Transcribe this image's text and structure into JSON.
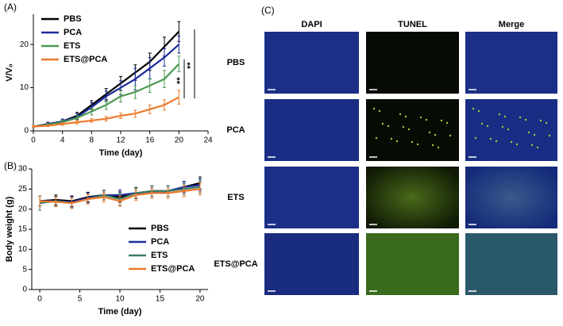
{
  "chart_data": [
    {
      "type": "line",
      "panel_label": "(A)",
      "x_label": "Time (day)",
      "y_label": "V/V₀",
      "x": [
        0,
        2,
        4,
        6,
        8,
        10,
        12,
        14,
        16,
        18,
        20
      ],
      "xlim": [
        0,
        24
      ],
      "xticks": [
        0,
        4,
        8,
        12,
        16,
        20,
        24
      ],
      "ylim": [
        0,
        27
      ],
      "yticks": [
        0,
        10,
        20
      ],
      "legend": "upper left",
      "annotations": [
        "**",
        "**"
      ],
      "series": [
        {
          "name": "PBS",
          "color": "#000000",
          "values": [
            1,
            1.6,
            2.2,
            3.5,
            6,
            8.5,
            11,
            13.5,
            16,
            19.5,
            23
          ],
          "errors": [
            0.2,
            0.4,
            0.5,
            0.8,
            1,
            1.3,
            1.6,
            1.8,
            2,
            2.2,
            2.3
          ]
        },
        {
          "name": "PCA",
          "color": "#1c2b9c",
          "values": [
            1,
            1.5,
            2.2,
            3.2,
            5.5,
            8,
            10,
            12,
            14.5,
            17,
            20
          ],
          "errors": [
            0.2,
            0.4,
            0.5,
            0.8,
            1,
            1.2,
            1.6,
            2.5,
            2.5,
            2,
            2
          ]
        },
        {
          "name": "ETS",
          "color": "#4c9a52",
          "values": [
            1,
            1.4,
            2,
            3,
            4.5,
            6,
            8,
            9,
            10.5,
            12,
            15.5
          ],
          "errors": [
            0.2,
            0.3,
            0.5,
            0.6,
            0.8,
            1,
            1.3,
            1.5,
            1.6,
            2,
            1.8
          ]
        },
        {
          "name": "ETS@PCA",
          "color": "#ec7a2c",
          "values": [
            1,
            1.2,
            1.6,
            2,
            2.4,
            2.8,
            3.5,
            4,
            5,
            6,
            7.8
          ],
          "errors": [
            0.2,
            0.2,
            0.3,
            0.4,
            0.4,
            0.5,
            0.6,
            0.8,
            1,
            1.2,
            1.6
          ]
        }
      ]
    },
    {
      "type": "line",
      "panel_label": "(B)",
      "x_label": "Time (day)",
      "y_label": "Body weight (g)",
      "x": [
        0,
        2,
        4,
        6,
        8,
        10,
        12,
        14,
        16,
        18,
        20
      ],
      "xlim": [
        -1,
        21
      ],
      "xticks": [
        0,
        5,
        10,
        15,
        20
      ],
      "ylim": [
        0,
        30
      ],
      "yticks": [
        0,
        5,
        10,
        15,
        20,
        25,
        30
      ],
      "legend": "lower right",
      "series": [
        {
          "name": "PBS",
          "color": "#000000",
          "values": [
            22,
            22.3,
            22,
            23,
            23.5,
            23,
            24,
            24.5,
            24.5,
            25.5,
            26.5
          ],
          "errors": [
            1.2,
            1.2,
            1.3,
            1.2,
            1.2,
            1.3,
            1.4,
            1.3,
            1.3,
            1.4,
            1.5
          ]
        },
        {
          "name": "PCA",
          "color": "#1c2b9c",
          "values": [
            22,
            22,
            21.8,
            22.8,
            23.5,
            23.5,
            24,
            24,
            24.5,
            25.5,
            26
          ],
          "errors": [
            1.2,
            1.2,
            1.3,
            1.2,
            1.2,
            1.3,
            1.3,
            1.3,
            1.3,
            1.4,
            1.5
          ]
        },
        {
          "name": "ETS",
          "color": "#3f7d62",
          "values": [
            21.5,
            22,
            21.5,
            22.5,
            23.5,
            22.5,
            24,
            24.5,
            24.5,
            25,
            25.5
          ],
          "errors": [
            1.8,
            1.2,
            1.3,
            1.2,
            1.2,
            1.5,
            1.3,
            1.3,
            1.3,
            1.4,
            1.5
          ]
        },
        {
          "name": "ETS@PCA",
          "color": "#ec7a2c",
          "values": [
            22,
            21.8,
            21.5,
            22.5,
            23,
            22,
            23.5,
            24,
            24,
            24.5,
            25
          ],
          "errors": [
            1.2,
            1.2,
            1.3,
            1.2,
            1.2,
            1.3,
            1.3,
            1.3,
            1.3,
            1.4,
            1.5
          ]
        }
      ]
    }
  ],
  "panel_c": {
    "label": "(C)",
    "columns": [
      "DAPI",
      "TUNEL",
      "Merge"
    ],
    "rows": [
      "PBS",
      "PCA",
      "ETS",
      "ETS@PCA"
    ]
  }
}
